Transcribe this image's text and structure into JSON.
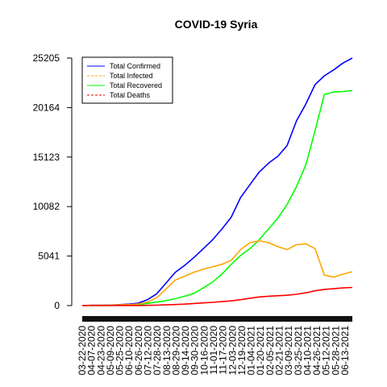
{
  "chart_data": {
    "type": "line",
    "title": "COVID-19 Syria",
    "xlabel": "",
    "ylabel": "",
    "ylim": [
      0,
      25205
    ],
    "y_ticks": [
      0,
      5041,
      10082,
      15123,
      20164,
      25205
    ],
    "x_tick_labels": [
      "03-22-2020",
      "04-07-2020",
      "04-23-2020",
      "05-09-2020",
      "05-25-2020",
      "06-10-2020",
      "06-26-2020",
      "07-12-2020",
      "07-28-2020",
      "08-13-2020",
      "08-29-2020",
      "09-14-2020",
      "09-30-2020",
      "10-16-2020",
      "11-01-2020",
      "11-17-2020",
      "12-03-2020",
      "12-19-2020",
      "01-04-2021",
      "01-20-2021",
      "02-05-2021",
      "02-21-2021",
      "03-09-2021",
      "03-25-2021",
      "04-10-2021",
      "04-26-2021",
      "05-12-2021",
      "05-28-2021",
      "06-13-2021"
    ],
    "legend_position": "top-left",
    "x": [
      "03-22-2020",
      "04-07-2020",
      "04-23-2020",
      "05-09-2020",
      "05-25-2020",
      "06-10-2020",
      "06-26-2020",
      "07-12-2020",
      "07-28-2020",
      "08-13-2020",
      "08-29-2020",
      "09-14-2020",
      "09-30-2020",
      "10-16-2020",
      "11-01-2020",
      "11-17-2020",
      "12-03-2020",
      "12-19-2020",
      "01-04-2021",
      "01-20-2021",
      "02-05-2021",
      "02-21-2021",
      "03-09-2021",
      "03-25-2021",
      "04-10-2021",
      "04-26-2021",
      "05-12-2021",
      "05-28-2021",
      "06-13-2021",
      "06-24-2021"
    ],
    "series": [
      {
        "name": "Total Confirmed",
        "color": "#0000ff",
        "dash": "solid",
        "values": [
          1,
          30,
          40,
          50,
          100,
          150,
          250,
          600,
          1200,
          2300,
          3400,
          4100,
          4900,
          5800,
          6700,
          7800,
          9000,
          11000,
          12300,
          13600,
          14500,
          15200,
          16300,
          18800,
          20500,
          22500,
          23400,
          24000,
          24700,
          25205
        ]
      },
      {
        "name": "Total Infected",
        "color": "#ffa500",
        "dash": "dashed",
        "values": [
          1,
          25,
          30,
          40,
          70,
          100,
          160,
          350,
          800,
          1700,
          2600,
          3000,
          3400,
          3700,
          3950,
          4200,
          4600,
          5700,
          6400,
          6600,
          6400,
          6000,
          5700,
          6200,
          6300,
          5800,
          3100,
          2900,
          3200,
          3450
        ]
      },
      {
        "name": "Total Recovered",
        "color": "#00ff00",
        "dash": "solid",
        "values": [
          0,
          5,
          10,
          12,
          30,
          50,
          80,
          230,
          350,
          500,
          700,
          950,
          1250,
          1800,
          2400,
          3200,
          4200,
          5100,
          5800,
          6700,
          7800,
          8900,
          10300,
          12100,
          14300,
          17800,
          21500,
          21750,
          21800,
          21900
        ]
      },
      {
        "name": "Total Deaths",
        "color": "#ff0000",
        "dash": "dashed",
        "values": [
          0,
          2,
          3,
          4,
          5,
          8,
          12,
          25,
          45,
          70,
          110,
          150,
          210,
          270,
          330,
          400,
          480,
          600,
          750,
          880,
          950,
          1000,
          1050,
          1150,
          1300,
          1500,
          1650,
          1720,
          1800,
          1850
        ]
      }
    ]
  }
}
